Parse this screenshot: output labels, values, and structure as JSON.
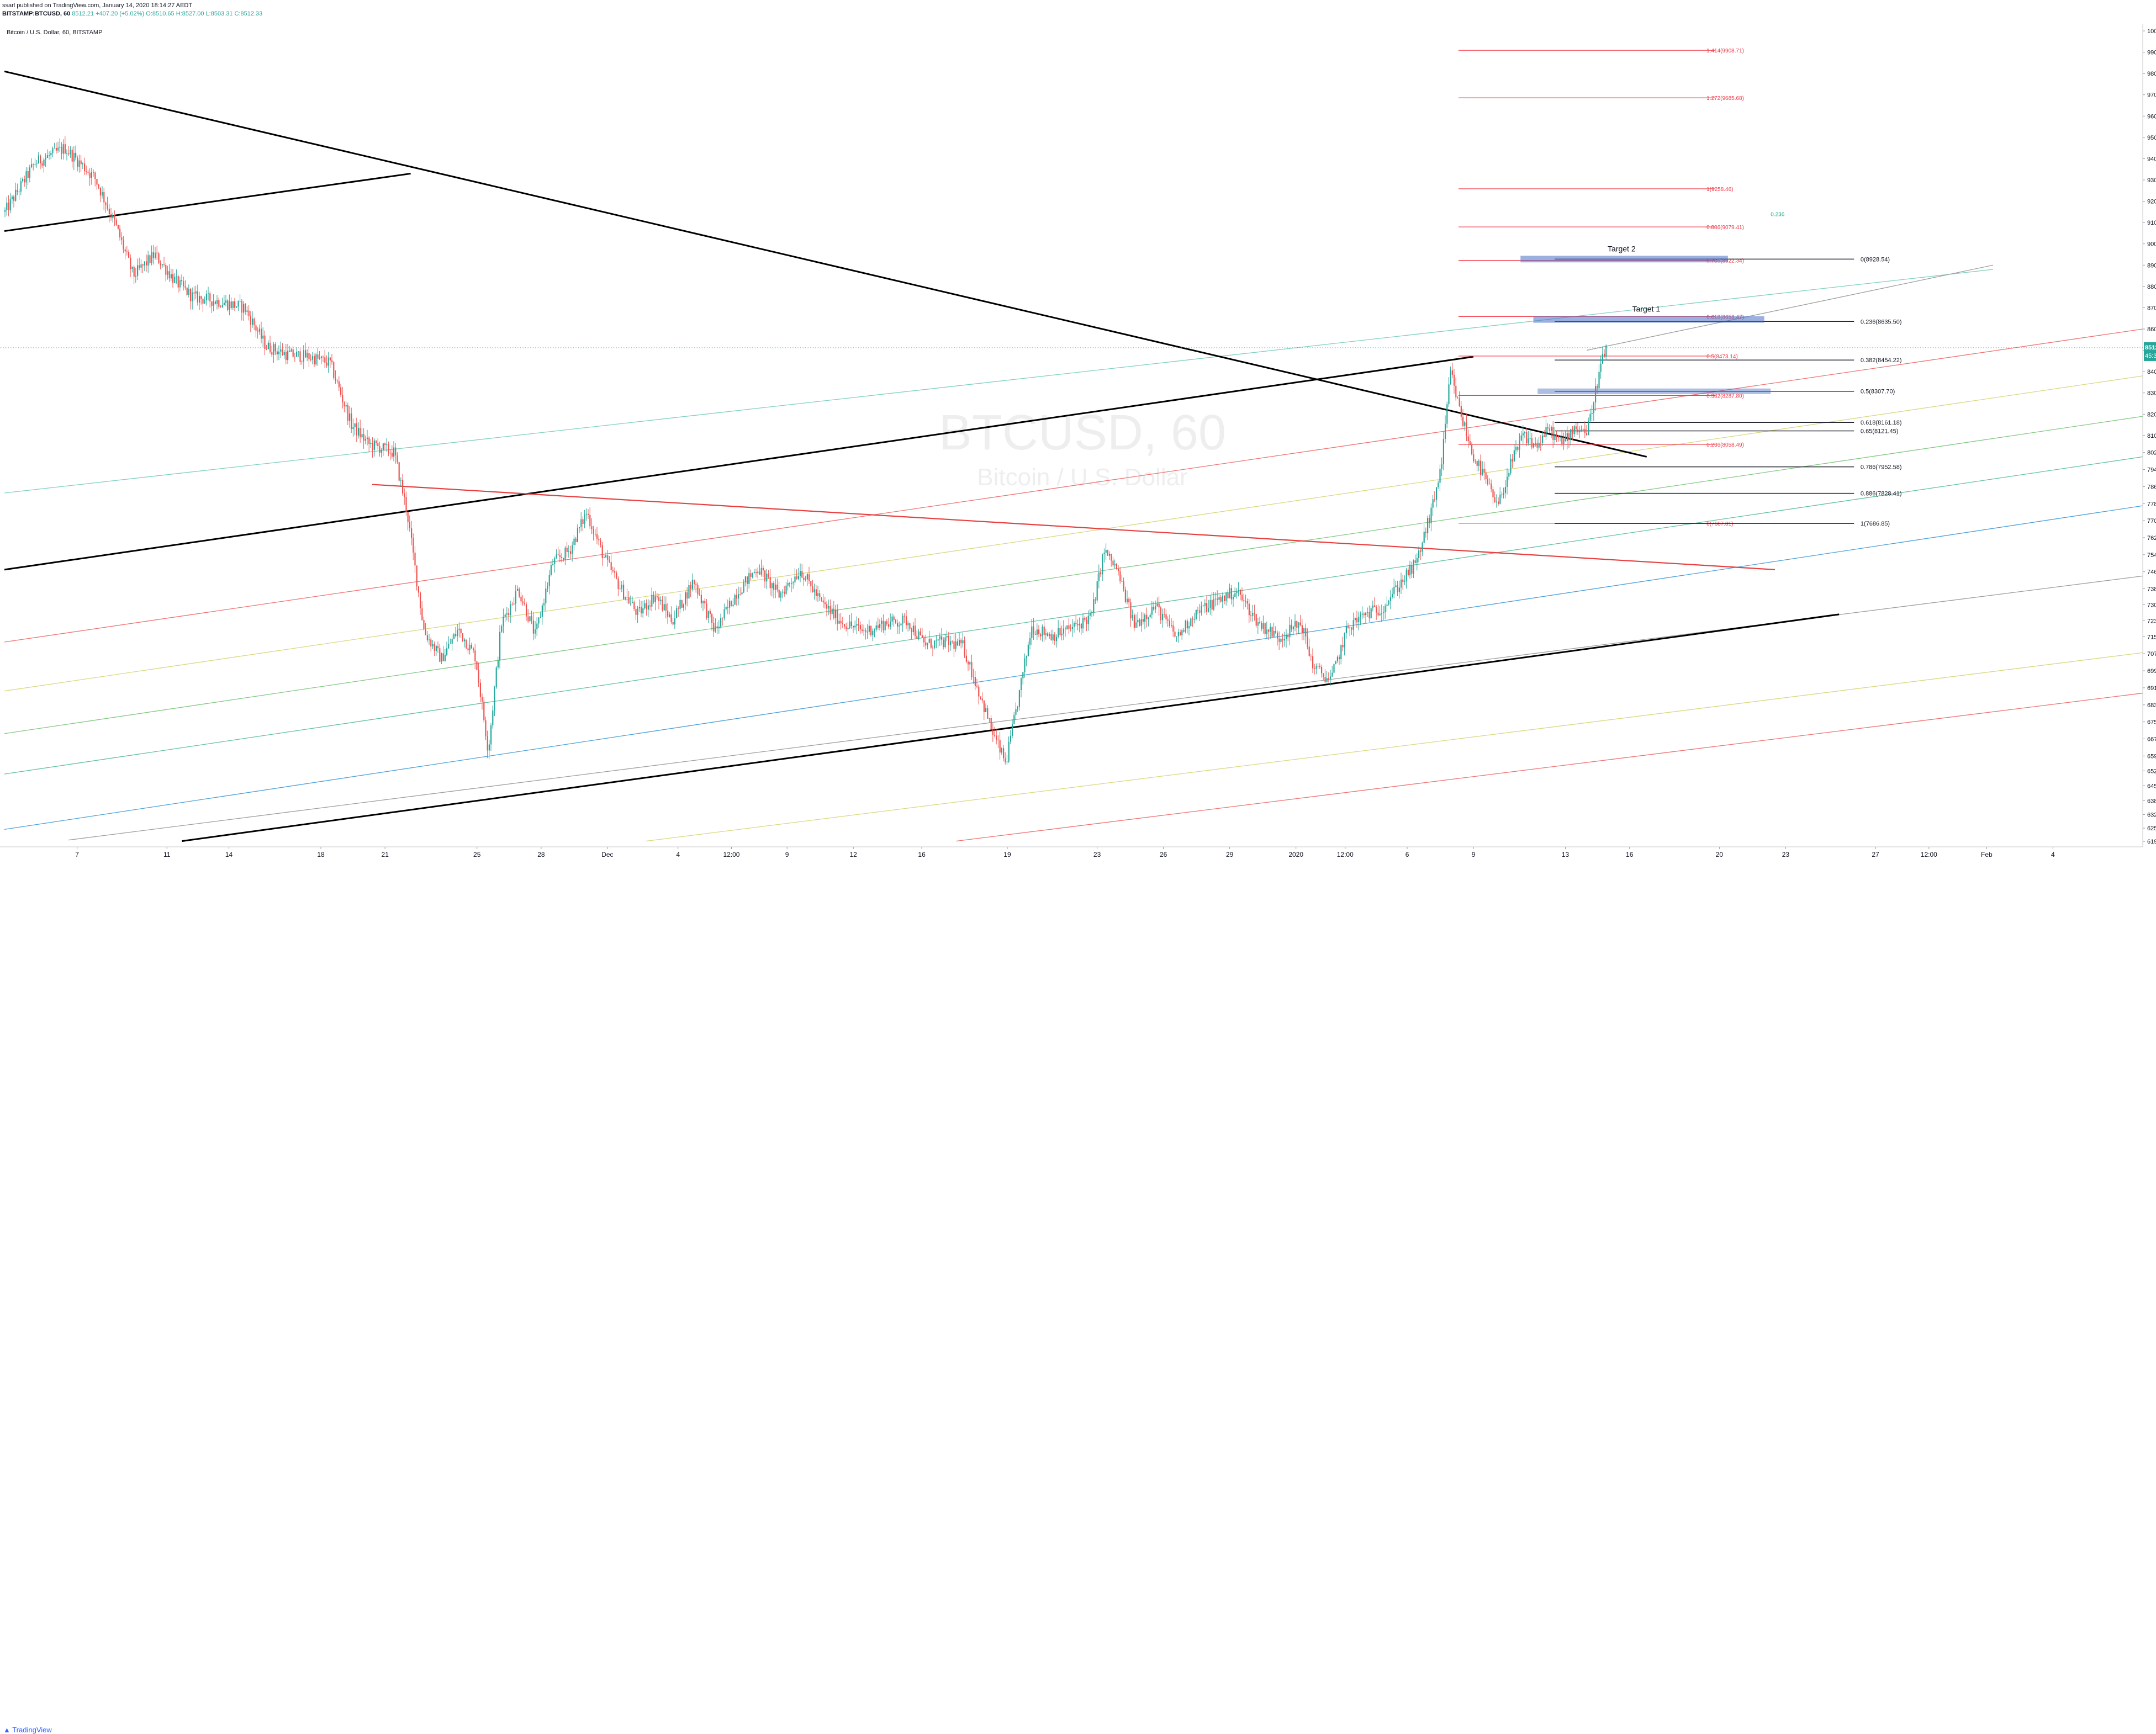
{
  "header": {
    "published": "ssarl published on TradingView.com, January 14, 2020 18:14:27 AEDT",
    "symbol": "BITSTAMP:BTCUSD, 60",
    "last": "8512.21",
    "change": "+407.20 (+5.02%)",
    "ohlc": "O:8510.65 H:8527.00 L:8503.31 C:8512.33"
  },
  "legend_title": "Bitcoin / U.S. Dollar, 60, BITSTAMP",
  "watermark": "BTCUSD, 60",
  "watermark_sub": "Bitcoin / U.S. Dollar",
  "footer": {
    "brand": "TradingView"
  },
  "colors": {
    "up": "#26a69a",
    "down": "#ef5350",
    "fib_red": "#f23645",
    "trend": "#000000",
    "zone": "#4a6fc4"
  },
  "price_tag": {
    "value": "8512.21",
    "countdown": "45:34"
  },
  "chart_data": {
    "type": "candlestick",
    "ylim": [
      6194,
      10000
    ],
    "y_ticks": [
      10000,
      9900,
      9800,
      9700,
      9600,
      9500,
      9400,
      9300,
      9200,
      9100,
      9000,
      8900,
      8800,
      8700,
      8600,
      8500,
      8400,
      8300,
      8200,
      8100,
      8020,
      7940,
      7860,
      7780,
      7700,
      7620,
      7540,
      7460,
      7380,
      7305,
      7230,
      7155,
      7075,
      6995,
      6915,
      6835,
      6755,
      6675,
      6595,
      6525,
      6455,
      6385,
      6320,
      6256,
      6194
    ],
    "x_ticks": [
      "7",
      "11",
      "14",
      "18",
      "21",
      "25",
      "28",
      "Dec",
      "4",
      "12:00",
      "9",
      "12",
      "16",
      "19",
      "23",
      "26",
      "29",
      "2020",
      "12:00",
      "6",
      "9",
      "13",
      "16",
      "20",
      "23",
      "27",
      "12:00",
      "Feb",
      "4"
    ],
    "x_tick_pos": [
      0.034,
      0.076,
      0.105,
      0.148,
      0.178,
      0.221,
      0.251,
      0.282,
      0.315,
      0.34,
      0.366,
      0.397,
      0.429,
      0.469,
      0.511,
      0.542,
      0.573,
      0.604,
      0.627,
      0.656,
      0.687,
      0.73,
      0.76,
      0.802,
      0.833,
      0.875,
      0.9,
      0.927,
      0.958
    ],
    "price_path": [
      [
        0.0,
        9150
      ],
      [
        0.014,
        9380
      ],
      [
        0.028,
        9450
      ],
      [
        0.042,
        9310
      ],
      [
        0.052,
        9080
      ],
      [
        0.06,
        8850
      ],
      [
        0.07,
        8950
      ],
      [
        0.08,
        8820
      ],
      [
        0.088,
        8750
      ],
      [
        0.1,
        8730
      ],
      [
        0.112,
        8700
      ],
      [
        0.122,
        8520
      ],
      [
        0.132,
        8480
      ],
      [
        0.142,
        8470
      ],
      [
        0.152,
        8440
      ],
      [
        0.162,
        8150
      ],
      [
        0.17,
        8060
      ],
      [
        0.182,
        8020
      ],
      [
        0.188,
        7740
      ],
      [
        0.196,
        7180
      ],
      [
        0.204,
        7050
      ],
      [
        0.212,
        7190
      ],
      [
        0.22,
        7060
      ],
      [
        0.226,
        6620
      ],
      [
        0.232,
        7210
      ],
      [
        0.24,
        7380
      ],
      [
        0.248,
        7160
      ],
      [
        0.256,
        7500
      ],
      [
        0.264,
        7560
      ],
      [
        0.272,
        7740
      ],
      [
        0.28,
        7530
      ],
      [
        0.288,
        7380
      ],
      [
        0.296,
        7260
      ],
      [
        0.304,
        7350
      ],
      [
        0.312,
        7230
      ],
      [
        0.322,
        7420
      ],
      [
        0.332,
        7180
      ],
      [
        0.342,
        7360
      ],
      [
        0.352,
        7480
      ],
      [
        0.362,
        7350
      ],
      [
        0.372,
        7470
      ],
      [
        0.382,
        7310
      ],
      [
        0.392,
        7220
      ],
      [
        0.402,
        7180
      ],
      [
        0.412,
        7220
      ],
      [
        0.422,
        7230
      ],
      [
        0.43,
        7120
      ],
      [
        0.44,
        7130
      ],
      [
        0.448,
        7110
      ],
      [
        0.456,
        6880
      ],
      [
        0.462,
        6700
      ],
      [
        0.468,
        6560
      ],
      [
        0.474,
        6870
      ],
      [
        0.48,
        7200
      ],
      [
        0.49,
        7160
      ],
      [
        0.5,
        7200
      ],
      [
        0.508,
        7250
      ],
      [
        0.514,
        7560
      ],
      [
        0.52,
        7470
      ],
      [
        0.528,
        7210
      ],
      [
        0.538,
        7300
      ],
      [
        0.548,
        7150
      ],
      [
        0.556,
        7260
      ],
      [
        0.566,
        7320
      ],
      [
        0.576,
        7370
      ],
      [
        0.586,
        7220
      ],
      [
        0.596,
        7150
      ],
      [
        0.606,
        7220
      ],
      [
        0.612,
        7010
      ],
      [
        0.62,
        6950
      ],
      [
        0.628,
        7200
      ],
      [
        0.636,
        7260
      ],
      [
        0.644,
        7290
      ],
      [
        0.652,
        7400
      ],
      [
        0.66,
        7500
      ],
      [
        0.668,
        7780
      ],
      [
        0.672,
        7980
      ],
      [
        0.676,
        8400
      ],
      [
        0.68,
        8230
      ],
      [
        0.686,
        8020
      ],
      [
        0.692,
        7900
      ],
      [
        0.698,
        7760
      ],
      [
        0.704,
        7960
      ],
      [
        0.71,
        8100
      ],
      [
        0.716,
        8050
      ],
      [
        0.722,
        8130
      ],
      [
        0.728,
        8060
      ],
      [
        0.734,
        8140
      ],
      [
        0.74,
        8120
      ],
      [
        0.746,
        8420
      ],
      [
        0.749,
        8520
      ]
    ],
    "trend_lines": [
      [
        [
          0.0,
          9060
        ],
        [
          0.19,
          9330
        ]
      ],
      [
        [
          0.0,
          9810
        ],
        [
          0.768,
          8000
        ]
      ],
      [
        [
          0.0,
          7470
        ],
        [
          0.687,
          8470
        ]
      ],
      [
        [
          0.172,
          7870
        ],
        [
          0.828,
          7470
        ]
      ],
      [
        [
          0.083,
          6195
        ],
        [
          0.858,
          7260
        ]
      ]
    ],
    "channel_lines": [
      {
        "color": "#7fd0c0",
        "pts": [
          [
            0.0,
            7830
          ],
          [
            0.93,
            8880
          ]
        ]
      },
      {
        "color": "#f07070",
        "pts": [
          [
            0.0,
            7130
          ],
          [
            1.0,
            8600
          ]
        ]
      },
      {
        "color": "#d8d880",
        "pts": [
          [
            0.0,
            6900
          ],
          [
            1.0,
            8380
          ]
        ]
      },
      {
        "color": "#80c880",
        "pts": [
          [
            0.0,
            6700
          ],
          [
            1.0,
            8190
          ]
        ]
      },
      {
        "color": "#60c0a0",
        "pts": [
          [
            0.0,
            6510
          ],
          [
            1.0,
            8000
          ]
        ]
      },
      {
        "color": "#4aa0d8",
        "pts": [
          [
            0.0,
            6250
          ],
          [
            1.0,
            7770
          ]
        ]
      },
      {
        "color": "#9e9e9e",
        "pts": [
          [
            0.03,
            6200
          ],
          [
            1.0,
            7440
          ]
        ]
      },
      {
        "color": "#d8d880",
        "pts": [
          [
            0.3,
            6195
          ],
          [
            1.0,
            7080
          ]
        ]
      },
      {
        "color": "#f07070",
        "pts": [
          [
            0.445,
            6195
          ],
          [
            1.0,
            6890
          ]
        ]
      },
      {
        "color": "#9e9e9e",
        "pts": [
          [
            0.74,
            8500
          ],
          [
            0.93,
            8900
          ]
        ]
      }
    ],
    "fib_extension": [
      {
        "label": "1.414(9908.71)",
        "price": 9908.71
      },
      {
        "label": "1.272(9685.68)",
        "price": 9685.68
      },
      {
        "label": "1(9258.46)",
        "price": 9258.46
      },
      {
        "label": "0.886(9079.41)",
        "price": 9079.41
      },
      {
        "label": "0.786(8922.34)",
        "price": 8922.34
      },
      {
        "label": "0.618(8658.47)",
        "price": 8658.47
      },
      {
        "label": "0.5(8473.14)",
        "price": 8473.14
      },
      {
        "label": "0.382(8287.80)",
        "price": 8287.8
      },
      {
        "label": "0.236(8058.49)",
        "price": 8058.49
      },
      {
        "label": "0(7687.81)",
        "price": 7687.81
      }
    ],
    "fib_retracement": [
      {
        "label": "0(8928.54)",
        "price": 8928.54
      },
      {
        "label": "0.236(8635.50)",
        "price": 8635.5
      },
      {
        "label": "0.382(8454.22)",
        "price": 8454.22
      },
      {
        "label": "0.5(8307.70)",
        "price": 8307.7
      },
      {
        "label": "0.618(8161.18)",
        "price": 8161.18
      },
      {
        "label": "0.65(8121.45)",
        "price": 8121.45
      },
      {
        "label": "0.786(7952.58)",
        "price": 7952.58
      },
      {
        "label": "0.886(7828.41)",
        "price": 7828.41
      },
      {
        "label": "1(7686.85)",
        "price": 7686.85
      }
    ],
    "targets": [
      {
        "label": "Target 2",
        "price": 8928.54,
        "x0": 0.709,
        "x1": 0.806
      },
      {
        "label": "Target 1",
        "price": 8645,
        "x0": 0.715,
        "x1": 0.823
      }
    ],
    "green_level": {
      "label": "0.236",
      "price": 9140
    },
    "current_price": 8512.21
  }
}
